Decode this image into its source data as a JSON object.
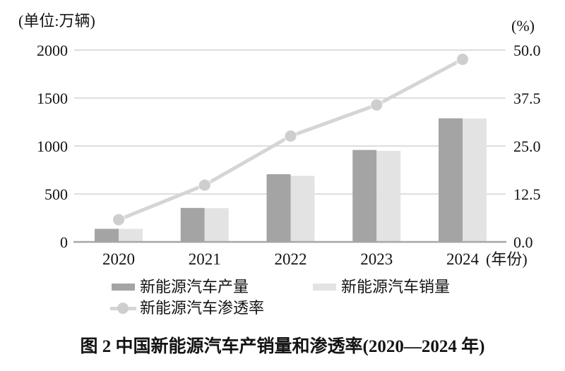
{
  "figure": {
    "caption": "图 2  中国新能源汽车产销量和渗透率(2020—2024 年)"
  },
  "chart_data": {
    "type": "bar+line combo",
    "title": "图 2  中国新能源汽车产销量和渗透率(2020—2024 年)",
    "categories": [
      "2020",
      "2021",
      "2022",
      "2023",
      "2024"
    ],
    "bar_series": [
      {
        "key": "production",
        "name": "新能源汽车产量",
        "color": "#a4a4a4",
        "axis": "left",
        "values": [
          136.6,
          354.5,
          705.8,
          958.7,
          1288.8
        ]
      },
      {
        "key": "sales",
        "name": "新能源汽车销量",
        "color": "#e3e3e3",
        "axis": "left",
        "values": [
          136.7,
          352.1,
          688.7,
          949.5,
          1286.6
        ]
      }
    ],
    "line_series": [
      {
        "key": "penetration",
        "name": "新能源汽车渗透率",
        "color": "#d5d5d5",
        "marker_color": "#cecece",
        "axis": "right",
        "values": [
          5.8,
          14.8,
          27.6,
          35.7,
          47.6
        ]
      }
    ],
    "left_axis": {
      "label": "(单位:万辆)",
      "ticks": [
        "0",
        "500",
        "1000",
        "1500",
        "2000"
      ],
      "range": [
        0,
        2000
      ]
    },
    "right_axis": {
      "label": "(%)",
      "ticks": [
        "0.0",
        "12.5",
        "25.0",
        "37.5",
        "50.0"
      ],
      "range": [
        0,
        50
      ]
    },
    "x_axis": {
      "label_suffix": "(年份)"
    },
    "grid": true,
    "legend_position": "bottom",
    "colors": {
      "gridline": "#c9c9c9",
      "baseline": "#a6a6a6",
      "text": "#141414"
    }
  }
}
